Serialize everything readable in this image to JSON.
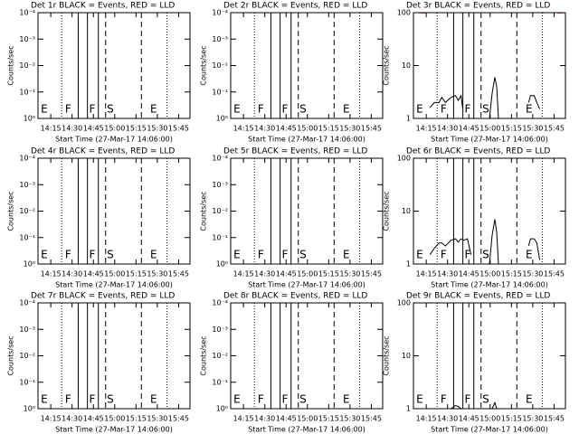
{
  "markers": {
    "x": [
      862.7,
      874.3,
      880.8,
      888.5,
      893.6,
      918.8,
      936.8
    ],
    "styles": [
      "dotted",
      "solid",
      "solid",
      "solid",
      "dashed",
      "dashed",
      "dotted"
    ]
  },
  "region_labels": {
    "labels": [
      "E",
      "F",
      "F",
      "S",
      "E"
    ],
    "x": [
      848,
      865,
      882,
      894.5,
      925
    ]
  },
  "chart_data": [
    {
      "type": "line",
      "title": "Det 1r BLACK = Events, RED = LLD",
      "xlabel": "Start Time (27-Mar-17 14:06:00)",
      "ylabel": "Counts/sec",
      "log_y": true,
      "xlim": [
        846,
        953
      ],
      "xticks": [
        {
          "value": 855,
          "label": "14:15"
        },
        {
          "value": 870,
          "label": "14:30"
        },
        {
          "value": 885,
          "label": "14:45"
        },
        {
          "value": 900,
          "label": "15:00"
        },
        {
          "value": 915,
          "label": "15:15"
        },
        {
          "value": 930,
          "label": "15:30"
        },
        {
          "value": 945,
          "label": "15:45"
        }
      ],
      "ylim": [
        1,
        0.0001
      ],
      "yticks": [
        {
          "value": 1,
          "label": "10⁰"
        },
        {
          "value": 0.1,
          "label": "10⁻¹"
        },
        {
          "value": 0.01,
          "label": "10⁻²"
        },
        {
          "value": 0.001,
          "label": "10⁻³"
        },
        {
          "value": 0.0001,
          "label": "10⁻⁴"
        }
      ]
    },
    {
      "type": "line",
      "title": "Det 2r BLACK = Events, RED = LLD",
      "xlabel": "Start Time (27-Mar-17 14:06:00)",
      "ylabel": "Counts/sec",
      "log_y": true,
      "xlim": [
        846,
        953
      ],
      "xticks": [
        {
          "value": 855,
          "label": "14:15"
        },
        {
          "value": 870,
          "label": "14:30"
        },
        {
          "value": 885,
          "label": "14:45"
        },
        {
          "value": 900,
          "label": "15:00"
        },
        {
          "value": 915,
          "label": "15:15"
        },
        {
          "value": 930,
          "label": "15:30"
        },
        {
          "value": 945,
          "label": "15:45"
        }
      ],
      "ylim": [
        1,
        0.0001
      ],
      "yticks": [
        {
          "value": 1,
          "label": "10⁰"
        },
        {
          "value": 0.1,
          "label": "10⁻¹"
        },
        {
          "value": 0.01,
          "label": "10⁻²"
        },
        {
          "value": 0.001,
          "label": "10⁻³"
        },
        {
          "value": 0.0001,
          "label": "10⁻⁴"
        }
      ]
    },
    {
      "type": "line",
      "title": "Det 3r BLACK = Events, RED = LLD",
      "xlabel": "Start Time (27-Mar-17 14:06:00)",
      "ylabel": "Counts/sec",
      "log_y": true,
      "xlim": [
        846,
        953
      ],
      "xticks": [
        {
          "value": 855,
          "label": "14:15"
        },
        {
          "value": 870,
          "label": "14:30"
        },
        {
          "value": 885,
          "label": "14:45"
        },
        {
          "value": 900,
          "label": "15:00"
        },
        {
          "value": 915,
          "label": "15:15"
        },
        {
          "value": 930,
          "label": "15:30"
        },
        {
          "value": 945,
          "label": "15:45"
        }
      ],
      "ylim": [
        1,
        100
      ],
      "yticks": [
        1,
        10,
        100
      ],
      "series": [
        {
          "name": "Events",
          "color": "#000000",
          "x": [
            857.6,
            860.8,
            864.0,
            866.0,
            868.5,
            872.4,
            875.6,
            877.6,
            879.5,
            880.8,
            null,
            899.5,
            901.4,
            903.3,
            904.6,
            905.9,
            null,
            927.1,
            928.4,
            931.0,
            932.9,
            934.9
          ],
          "values": [
            1.6,
            2,
            2,
            2.5,
            2,
            2.5,
            2.7,
            2.2,
            2.7,
            1.5,
            null,
            1,
            3,
            6,
            4,
            1,
            null,
            2,
            2.7,
            2.7,
            2,
            1.5
          ]
        },
        {
          "name": "LLD",
          "color": "#ff0000",
          "x": [
            849.9,
            854.4,
            null,
            947.7,
            952.5
          ],
          "values": [
            100,
            98,
            null,
            98,
            100
          ]
        }
      ]
    },
    {
      "type": "line",
      "title": "Det 4r BLACK = Events, RED = LLD",
      "xlabel": "Start Time (27-Mar-17 14:06:00)",
      "ylabel": "Counts/sec",
      "log_y": true,
      "xlim": [
        846,
        953
      ],
      "xticks": [
        {
          "value": 855,
          "label": "14:15"
        },
        {
          "value": 870,
          "label": "14:30"
        },
        {
          "value": 885,
          "label": "14:45"
        },
        {
          "value": 900,
          "label": "15:00"
        },
        {
          "value": 915,
          "label": "15:15"
        },
        {
          "value": 930,
          "label": "15:30"
        },
        {
          "value": 945,
          "label": "15:45"
        }
      ],
      "ylim": [
        1,
        0.0001
      ],
      "yticks": [
        {
          "value": 1,
          "label": "10⁰"
        },
        {
          "value": 0.1,
          "label": "10⁻¹"
        },
        {
          "value": 0.01,
          "label": "10⁻²"
        },
        {
          "value": 0.001,
          "label": "10⁻³"
        },
        {
          "value": 0.0001,
          "label": "10⁻⁴"
        }
      ]
    },
    {
      "type": "line",
      "title": "Det 5r BLACK = Events, RED = LLD",
      "xlabel": "Start Time (27-Mar-17 14:06:00)",
      "ylabel": "Counts/sec",
      "log_y": true,
      "xlim": [
        846,
        953
      ],
      "xticks": [
        {
          "value": 855,
          "label": "14:15"
        },
        {
          "value": 870,
          "label": "14:30"
        },
        {
          "value": 885,
          "label": "14:45"
        },
        {
          "value": 900,
          "label": "15:00"
        },
        {
          "value": 915,
          "label": "15:15"
        },
        {
          "value": 930,
          "label": "15:30"
        },
        {
          "value": 945,
          "label": "15:45"
        }
      ],
      "ylim": [
        1,
        0.0001
      ],
      "yticks": [
        {
          "value": 1,
          "label": "10⁰"
        },
        {
          "value": 0.1,
          "label": "10⁻¹"
        },
        {
          "value": 0.01,
          "label": "10⁻²"
        },
        {
          "value": 0.001,
          "label": "10⁻³"
        },
        {
          "value": 0.0001,
          "label": "10⁻⁴"
        }
      ]
    },
    {
      "type": "line",
      "title": "Det 6r BLACK = Events, RED = LLD",
      "xlabel": "Start Time (27-Mar-17 14:06:00)",
      "ylabel": "Counts/sec",
      "log_y": true,
      "xlim": [
        846,
        953
      ],
      "xticks": [
        {
          "value": 855,
          "label": "14:15"
        },
        {
          "value": 870,
          "label": "14:30"
        },
        {
          "value": 885,
          "label": "14:45"
        },
        {
          "value": 900,
          "label": "15:00"
        },
        {
          "value": 915,
          "label": "15:15"
        },
        {
          "value": 930,
          "label": "15:30"
        },
        {
          "value": 945,
          "label": "15:45"
        }
      ],
      "ylim": [
        1,
        100
      ],
      "yticks": [
        1,
        10,
        100
      ],
      "series": [
        {
          "name": "Events",
          "color": "#000000",
          "x": [
            857.6,
            860.8,
            864.0,
            866.0,
            868.5,
            872.4,
            875.6,
            877.6,
            879.5,
            881.5,
            884.0,
            886.5,
            null,
            899.5,
            901.4,
            903.3,
            904.6,
            905.9,
            null,
            927.1,
            928.4,
            931.0,
            932.9,
            934.9
          ],
          "values": [
            1.5,
            2,
            2.5,
            2.5,
            2.2,
            2.8,
            3,
            2.6,
            3,
            2.8,
            3,
            1.5,
            null,
            1,
            3.5,
            7,
            4,
            1,
            null,
            2.2,
            3,
            3,
            2.5,
            1.2
          ]
        }
      ]
    },
    {
      "type": "line",
      "title": "Det 7r BLACK = Events, RED = LLD",
      "xlabel": "Start Time (27-Mar-17 14:06:00)",
      "ylabel": "Counts/sec",
      "log_y": true,
      "xlim": [
        846,
        953
      ],
      "xticks": [
        {
          "value": 855,
          "label": "14:15"
        },
        {
          "value": 870,
          "label": "14:30"
        },
        {
          "value": 885,
          "label": "14:45"
        },
        {
          "value": 900,
          "label": "15:00"
        },
        {
          "value": 915,
          "label": "15:15"
        },
        {
          "value": 930,
          "label": "15:30"
        },
        {
          "value": 945,
          "label": "15:45"
        }
      ],
      "ylim": [
        1,
        0.0001
      ],
      "yticks": [
        {
          "value": 1,
          "label": "10⁰"
        },
        {
          "value": 0.1,
          "label": "10⁻¹"
        },
        {
          "value": 0.01,
          "label": "10⁻²"
        },
        {
          "value": 0.001,
          "label": "10⁻³"
        },
        {
          "value": 0.0001,
          "label": "10⁻⁴"
        }
      ]
    },
    {
      "type": "line",
      "title": "Det 8r BLACK = Events, RED = LLD",
      "xlabel": "Start Time (27-Mar-17 14:06:00)",
      "ylabel": "Counts/sec",
      "log_y": true,
      "xlim": [
        846,
        953
      ],
      "xticks": [
        {
          "value": 855,
          "label": "14:15"
        },
        {
          "value": 870,
          "label": "14:30"
        },
        {
          "value": 885,
          "label": "14:45"
        },
        {
          "value": 900,
          "label": "15:00"
        },
        {
          "value": 915,
          "label": "15:15"
        },
        {
          "value": 930,
          "label": "15:30"
        },
        {
          "value": 945,
          "label": "15:45"
        }
      ],
      "ylim": [
        1,
        0.0001
      ],
      "yticks": [
        {
          "value": 1,
          "label": "10⁰"
        },
        {
          "value": 0.1,
          "label": "10⁻¹"
        },
        {
          "value": 0.01,
          "label": "10⁻²"
        },
        {
          "value": 0.001,
          "label": "10⁻³"
        },
        {
          "value": 0.0001,
          "label": "10⁻⁴"
        }
      ]
    },
    {
      "type": "line",
      "title": "Det 9r BLACK = Events, RED = LLD",
      "xlabel": "Start Time (27-Mar-17 14:06:00)",
      "ylabel": "Counts/sec",
      "log_y": true,
      "xlim": [
        846,
        953
      ],
      "xticks": [
        {
          "value": 855,
          "label": "14:15"
        },
        {
          "value": 870,
          "label": "14:30"
        },
        {
          "value": 885,
          "label": "14:45"
        },
        {
          "value": 900,
          "label": "15:00"
        },
        {
          "value": 915,
          "label": "15:15"
        },
        {
          "value": 930,
          "label": "15:30"
        },
        {
          "value": 945,
          "label": "15:45"
        }
      ],
      "ylim": [
        1,
        100
      ],
      "yticks": [
        1,
        10,
        100
      ],
      "series": [
        {
          "name": "Events",
          "color": "#000000",
          "x": [
            872.4,
            875.6,
            877.6,
            879.5,
            null,
            901.4,
            903.3,
            904.6
          ],
          "values": [
            1,
            1.15,
            1.1,
            1,
            null,
            1,
            1.3,
            1
          ]
        }
      ]
    }
  ]
}
